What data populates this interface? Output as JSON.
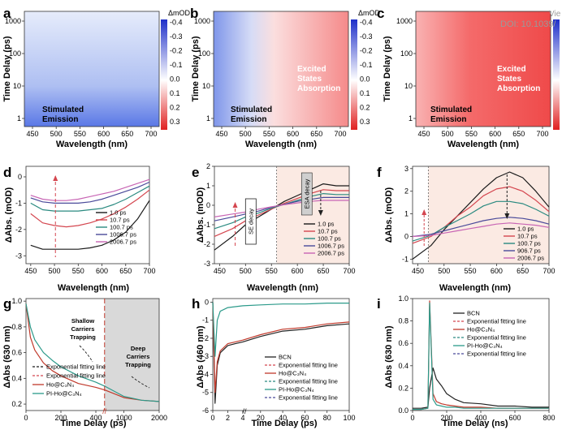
{
  "watermark": {
    "line1": "Vie",
    "line2": "DOI: 10.1039/"
  },
  "colorbar": {
    "title": "ΔmOD",
    "ticks": [
      "-0.4",
      "-0.3",
      "-0.2",
      "-0.1",
      "0.0",
      "0.1",
      "0.2",
      "0.3"
    ]
  },
  "colors": {
    "c1": "#1a1a1a",
    "c2": "#d4464f",
    "c3": "#2a8a80",
    "c4": "#4a4a9a",
    "c5": "#c865b4",
    "bcn": "#222222",
    "ho": "#c0392b",
    "piho": "#2b9a8a",
    "shade": "#fbeae3",
    "gray": "#d9d9d9"
  },
  "panels": {
    "a": {
      "label": "a",
      "xlabel": "Wavelength (nm)",
      "ylabel": "Time Delay (ps)",
      "xticks": [
        "450",
        "500",
        "550",
        "600",
        "650",
        "700"
      ],
      "yticks": [
        "1000",
        "100",
        "10",
        "1"
      ],
      "annotations": [
        {
          "text": "Stimulated",
          "text2": "Emission"
        }
      ]
    },
    "b": {
      "label": "b",
      "xlabel": "Wavelength (nm)",
      "ylabel": "Time Delay (ps)",
      "xticks": [
        "450",
        "500",
        "550",
        "600",
        "650",
        "700"
      ],
      "yticks": [
        "1000",
        "100",
        "10",
        "1"
      ],
      "annotations": [
        {
          "text": "Stimulated",
          "text2": "Emission"
        },
        {
          "text": "Excited",
          "text2": "States",
          "text3": "Absorption"
        }
      ]
    },
    "c": {
      "label": "c",
      "xlabel": "Wavelength (nm)",
      "ylabel": "Time Delay (ps)",
      "xticks": [
        "450",
        "500",
        "550",
        "600",
        "650",
        "700"
      ],
      "yticks": [
        "1000",
        "100",
        "10",
        "1"
      ],
      "annotations": [
        {
          "text": "Stimulated",
          "text2": "Emission"
        },
        {
          "text": "Excited",
          "text2": "States",
          "text3": "Absorption"
        }
      ]
    },
    "d": {
      "label": "d",
      "xlabel": "Wavelength (nm)",
      "ylabel": "ΔAbs. (mOD)",
      "xticks": [
        "450",
        "500",
        "550",
        "600",
        "650",
        "700"
      ],
      "yticks": [
        "0",
        "-1",
        "-2",
        "-3"
      ],
      "legend": [
        "1.0 ps",
        "10.7 ps",
        "100.7 ps",
        "1006.7 ps",
        "2006.7 ps"
      ]
    },
    "e": {
      "label": "e",
      "xlabel": "Wavelength (nm)",
      "ylabel": "ΔAbs. (mOD)",
      "xticks": [
        "450",
        "500",
        "550",
        "600",
        "650",
        "700"
      ],
      "yticks": [
        "2",
        "1",
        "0",
        "-1",
        "-2",
        "-3"
      ],
      "legend": [
        "1.0 ps",
        "10.7 ps",
        "100.7 ps",
        "1006.7 ps",
        "2006.7 ps"
      ],
      "box1": "SE decay",
      "box2": "ESA decay"
    },
    "f": {
      "label": "f",
      "xlabel": "Wavelength (nm)",
      "ylabel": "ΔAbs. (mOD)",
      "xticks": [
        "450",
        "500",
        "550",
        "600",
        "650",
        "700"
      ],
      "yticks": [
        "3",
        "2",
        "1",
        "0",
        "-1"
      ],
      "legend": [
        "1.0 ps",
        "10.7 ps",
        "100.7 ps",
        "906.7 ps",
        "2006.7 ps"
      ]
    },
    "g": {
      "label": "g",
      "xlabel": "Time Delay (ps)",
      "ylabel": "ΔAbs (630 nm)",
      "xticks": [
        "0",
        "200",
        "400",
        "1000",
        "2000"
      ],
      "yticks": [
        "1.0",
        "0.8",
        "0.6",
        "0.4",
        "0.2"
      ],
      "ann1": [
        "Shallow",
        "Carriers",
        "Trapping"
      ],
      "ann2": [
        "Deep",
        "Carriers",
        "Trapping"
      ],
      "legend": [
        "Exponential fitting line",
        "Exponential fitting line",
        "Ho@C₃N₄",
        "PI-Ho@C₃N₄"
      ]
    },
    "h": {
      "label": "h",
      "xlabel": "Time Delay (ps)",
      "ylabel": "ΔAbs (460 nm)",
      "xticks": [
        "0",
        "2",
        "4",
        "20",
        "40",
        "60",
        "80",
        "100"
      ],
      "yticks": [
        "0",
        "-1",
        "-2",
        "-3",
        "-4",
        "-5",
        "-6"
      ],
      "legend": [
        "BCN",
        "Exponential fitting line",
        "Ho@C₃N₄",
        "Exponential fitting line",
        "PI-Ho@C₃N₄",
        "Exponential fitting line"
      ]
    },
    "i": {
      "label": "i",
      "xlabel": "Time Delay (ns)",
      "ylabel": "ΔAbs (630 nm)",
      "xticks": [
        "0",
        "200",
        "400",
        "600",
        "800"
      ],
      "yticks": [
        "1.0",
        "0.8",
        "0.6",
        "0.4",
        "0.2",
        "0.0"
      ],
      "legend": [
        "BCN",
        "Exponential fitting line",
        "Ho@C₃N₄",
        "Exponential fitting line",
        "PI-Ho@C₃N₄",
        "Exponential fitting line"
      ]
    }
  },
  "chart_data": [
    {
      "panel": "d",
      "type": "line",
      "x": [
        450,
        475,
        500,
        525,
        550,
        575,
        600,
        625,
        650,
        675,
        700
      ],
      "series": [
        {
          "name": "1.0 ps",
          "values": [
            -2.6,
            -2.75,
            -2.75,
            -2.75,
            -2.75,
            -2.7,
            -2.6,
            -2.4,
            -2.1,
            -1.6,
            -0.9
          ]
        },
        {
          "name": "10.7 ps",
          "values": [
            -1.4,
            -1.75,
            -1.85,
            -1.9,
            -1.85,
            -1.75,
            -1.6,
            -1.4,
            -1.15,
            -0.85,
            -0.5
          ]
        },
        {
          "name": "100.7 ps",
          "values": [
            -1.0,
            -1.25,
            -1.3,
            -1.3,
            -1.3,
            -1.25,
            -1.2,
            -1.05,
            -0.85,
            -0.6,
            -0.35
          ]
        },
        {
          "name": "1006.7 ps",
          "values": [
            -0.8,
            -0.95,
            -1.0,
            -1.0,
            -1.0,
            -0.95,
            -0.85,
            -0.7,
            -0.55,
            -0.4,
            -0.2
          ]
        },
        {
          "name": "2006.7 ps",
          "values": [
            -0.7,
            -0.85,
            -0.9,
            -0.9,
            -0.85,
            -0.75,
            -0.65,
            -0.55,
            -0.4,
            -0.25,
            -0.1
          ]
        }
      ],
      "ylim": [
        -3.3,
        0.4
      ]
    },
    {
      "panel": "e",
      "type": "line",
      "x": [
        440,
        475,
        500,
        525,
        550,
        575,
        600,
        625,
        650,
        675,
        700
      ],
      "series": [
        {
          "name": "1.0 ps",
          "values": [
            -2.3,
            -1.6,
            -1.0,
            -0.6,
            -0.2,
            0.2,
            0.5,
            0.8,
            1.1,
            1.0,
            1.0
          ]
        },
        {
          "name": "10.7 ps",
          "values": [
            -1.6,
            -1.2,
            -0.8,
            -0.5,
            -0.2,
            0.1,
            0.35,
            0.6,
            0.8,
            0.75,
            0.75
          ]
        },
        {
          "name": "100.7 ps",
          "values": [
            -1.2,
            -0.9,
            -0.6,
            -0.4,
            -0.15,
            0.05,
            0.25,
            0.45,
            0.6,
            0.55,
            0.55
          ]
        },
        {
          "name": "1006.7 ps",
          "values": [
            -0.8,
            -0.6,
            -0.45,
            -0.3,
            -0.1,
            0.05,
            0.2,
            0.3,
            0.4,
            0.4,
            0.4
          ]
        },
        {
          "name": "2006.7 ps",
          "values": [
            -0.6,
            -0.45,
            -0.35,
            -0.2,
            -0.08,
            0.03,
            0.12,
            0.2,
            0.25,
            0.25,
            0.25
          ]
        }
      ],
      "ylim": [
        -3,
        2
      ]
    },
    {
      "panel": "f",
      "type": "line",
      "x": [
        440,
        475,
        500,
        525,
        550,
        575,
        600,
        625,
        650,
        675,
        700
      ],
      "series": [
        {
          "name": "1.0 ps",
          "values": [
            -1.0,
            -0.4,
            0.3,
            0.9,
            1.5,
            2.1,
            2.6,
            2.85,
            2.6,
            2.0,
            1.3
          ]
        },
        {
          "name": "10.7 ps",
          "values": [
            -0.3,
            0.0,
            0.4,
            0.9,
            1.3,
            1.8,
            2.1,
            2.2,
            2.0,
            1.6,
            1.1
          ]
        },
        {
          "name": "100.7 ps",
          "values": [
            -0.2,
            0.05,
            0.4,
            0.7,
            1.0,
            1.35,
            1.55,
            1.55,
            1.45,
            1.2,
            0.9
          ]
        },
        {
          "name": "906.7 ps",
          "values": [
            0.0,
            0.1,
            0.25,
            0.4,
            0.55,
            0.7,
            0.8,
            0.85,
            0.8,
            0.7,
            0.55
          ]
        },
        {
          "name": "2006.7 ps",
          "values": [
            0.0,
            0.05,
            0.15,
            0.25,
            0.35,
            0.45,
            0.55,
            0.6,
            0.55,
            0.5,
            0.4
          ]
        }
      ],
      "ylim": [
        -1.2,
        3.1
      ]
    },
    {
      "panel": "g",
      "type": "line",
      "x": [
        0,
        25,
        50,
        100,
        150,
        200,
        300,
        400,
        450,
        1000,
        1500,
        2000
      ],
      "series": [
        {
          "name": "Ho@C₃N₄",
          "values": [
            0.98,
            0.72,
            0.62,
            0.52,
            0.46,
            0.42,
            0.36,
            0.33,
            0.31,
            0.25,
            0.23,
            0.22
          ]
        },
        {
          "name": "PI-Ho@C₃N₄",
          "values": [
            0.98,
            0.8,
            0.7,
            0.6,
            0.54,
            0.49,
            0.42,
            0.37,
            0.34,
            0.26,
            0.23,
            0.22
          ]
        }
      ],
      "ylim": [
        0.15,
        1.02
      ]
    },
    {
      "panel": "h",
      "type": "line",
      "x": [
        0,
        0.3,
        0.6,
        1,
        2,
        3,
        4,
        20,
        40,
        60,
        80,
        100
      ],
      "series": [
        {
          "name": "BCN",
          "values": [
            0,
            -5.6,
            -3.5,
            -2.8,
            -2.4,
            -2.3,
            -2.2,
            -1.9,
            -1.6,
            -1.5,
            -1.3,
            -1.2
          ]
        },
        {
          "name": "Ho@C₃N₄",
          "values": [
            0,
            -5.0,
            -3.3,
            -2.7,
            -2.3,
            -2.2,
            -2.1,
            -1.8,
            -1.5,
            -1.4,
            -1.2,
            -1.1
          ]
        },
        {
          "name": "PI-Ho@C₃N₄",
          "values": [
            0,
            -3.0,
            -1.0,
            -0.5,
            -0.3,
            -0.25,
            -0.2,
            -0.15,
            -0.1,
            -0.1,
            -0.05,
            -0.05
          ]
        }
      ],
      "ylim": [
        -6,
        0.2
      ]
    },
    {
      "panel": "i",
      "type": "line",
      "x": [
        0,
        50,
        90,
        100,
        120,
        140,
        170,
        200,
        250,
        300,
        400,
        500,
        600,
        700,
        800
      ],
      "series": [
        {
          "name": "BCN",
          "values": [
            0.02,
            0.02,
            0.03,
            0.2,
            0.38,
            0.28,
            0.22,
            0.15,
            0.1,
            0.07,
            0.06,
            0.04,
            0.04,
            0.03,
            0.03
          ]
        },
        {
          "name": "Ho@C₃N₄",
          "values": [
            0.01,
            0.01,
            0.02,
            0.98,
            0.15,
            0.08,
            0.06,
            0.05,
            0.04,
            0.03,
            0.03,
            0.02,
            0.02,
            0.02,
            0.02
          ]
        },
        {
          "name": "PI-Ho@C₃N₄",
          "values": [
            0.01,
            0.01,
            0.02,
            0.96,
            0.1,
            0.05,
            0.04,
            0.03,
            0.03,
            0.02,
            0.02,
            0.02,
            0.02,
            0.02,
            0.02
          ]
        }
      ],
      "ylim": [
        0,
        1.0
      ]
    }
  ]
}
